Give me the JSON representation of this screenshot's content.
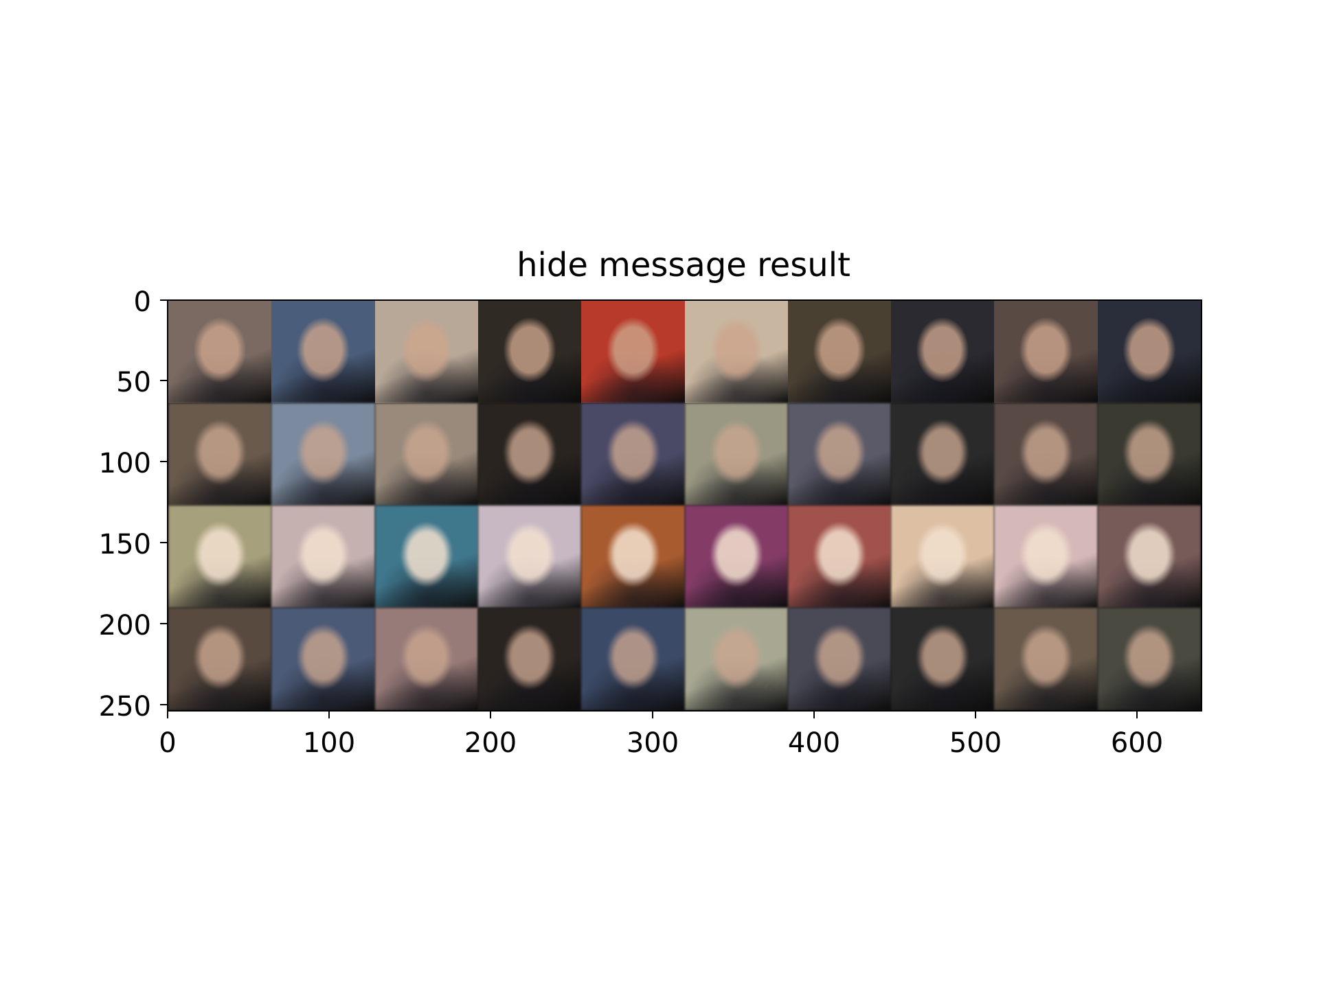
{
  "title": "hide message result",
  "axes": {
    "y_ticks": [
      "0",
      "50",
      "100",
      "150",
      "200",
      "250"
    ],
    "x_ticks": [
      "0",
      "100",
      "200",
      "300",
      "400",
      "500",
      "600"
    ],
    "ylim": [
      255,
      0
    ],
    "xlim": [
      0,
      640
    ]
  },
  "image_grid": {
    "rows": 4,
    "cols": 10,
    "tile_size_px_data": 64,
    "row_descriptions": [
      "original-photo",
      "blurry-face-reconstruction",
      "anime-face-message",
      "blurry-face-recovered"
    ],
    "tiles": [
      [
        "#7a6a62",
        "#4a5d7a",
        "#b8a898",
        "#2f2a24",
        "#b83a2a",
        "#c8b6a0",
        "#4a4032",
        "#2a2a30",
        "#5a4a44",
        "#2a2e3a"
      ],
      [
        "#6a5a4a",
        "#7a8aa0",
        "#9a8a7a",
        "#2a241e",
        "#4a4a6a",
        "#9a9880",
        "#5a5a6a",
        "#2a2a2a",
        "#5a4a44",
        "#3a3a30"
      ],
      [
        "#a8a078",
        "#c8b0b0",
        "#3a7890",
        "#c8b8c4",
        "#b05a2a",
        "#8a3a6a",
        "#a8504a",
        "#e0c0a0",
        "#d8b8b8",
        "#7a5a58"
      ],
      [
        "#5a4a3e",
        "#4a5a7a",
        "#9a7a78",
        "#2a2420",
        "#3a4a6a",
        "#a8a890",
        "#4a4a58",
        "#2a2a2a",
        "#6a5a4a",
        "#4a4a40"
      ]
    ]
  }
}
